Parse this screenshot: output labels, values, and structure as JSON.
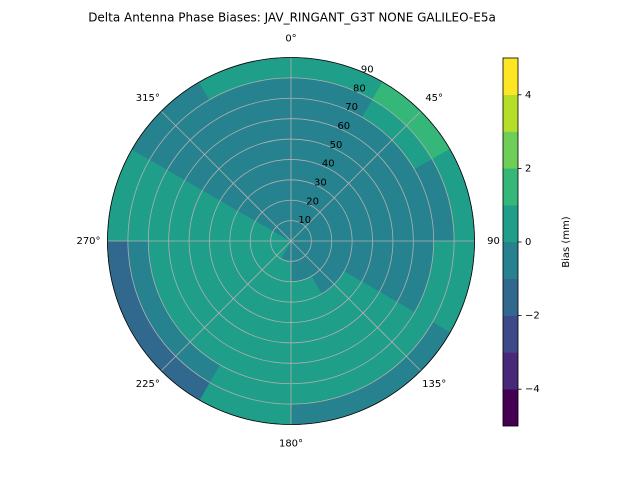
{
  "chart_data": {
    "type": "polar_contour",
    "title": "Delta Antenna Phase Biases: JAV_RINGANT_G3T NONE GALILEO-E5a",
    "theta_edges": [
      0,
      30,
      60,
      90,
      120,
      150,
      180,
      210,
      240,
      270,
      300,
      330,
      360
    ],
    "r_edges": [
      0,
      10,
      20,
      30,
      40,
      50,
      60,
      70,
      80,
      90
    ],
    "z": [
      [
        -0.5,
        -0.5,
        -0.5,
        -0.5,
        -0.5,
        -0.5,
        -0.5,
        -0.5,
        0.5
      ],
      [
        -0.5,
        -0.5,
        -0.5,
        -0.5,
        -0.5,
        -0.5,
        -0.5,
        0.5,
        1.5
      ],
      [
        -0.5,
        -0.5,
        -0.5,
        -0.5,
        -0.5,
        -0.5,
        -0.5,
        -0.5,
        0.5
      ],
      [
        -0.5,
        -0.5,
        -0.5,
        -0.5,
        -0.5,
        -0.5,
        -0.5,
        0.5,
        0.5
      ],
      [
        -0.5,
        -0.5,
        -0.5,
        0.5,
        0.5,
        0.5,
        0.5,
        0.5,
        -0.5
      ],
      [
        -0.5,
        -0.5,
        0.5,
        0.5,
        0.5,
        0.5,
        0.5,
        0.5,
        -0.5
      ],
      [
        -0.5,
        0.5,
        0.5,
        0.5,
        0.5,
        0.5,
        0.5,
        0.5,
        0.5
      ],
      [
        0.5,
        0.5,
        0.5,
        0.5,
        0.5,
        0.5,
        0.5,
        -0.5,
        -1.5
      ],
      [
        0.5,
        0.5,
        0.5,
        0.5,
        0.5,
        0.5,
        0.5,
        -0.5,
        -1.5
      ],
      [
        0.5,
        0.5,
        0.5,
        0.5,
        0.5,
        0.5,
        0.5,
        0.5,
        0.5
      ],
      [
        -0.5,
        -0.5,
        -0.5,
        -0.5,
        -0.5,
        -0.5,
        -0.5,
        -0.5,
        -0.5
      ],
      [
        -0.5,
        -0.5,
        -0.5,
        -0.5,
        -0.5,
        -0.5,
        -0.5,
        -0.5,
        0.5
      ]
    ],
    "rlim": [
      0,
      90
    ],
    "rticks": [
      10,
      20,
      30,
      40,
      50,
      60,
      70,
      80,
      90
    ],
    "thetaticks": [
      {
        "value": 0,
        "label": "0°"
      },
      {
        "value": 45,
        "label": "45°"
      },
      {
        "value": 90,
        "label": "90"
      },
      {
        "value": 135,
        "label": "135°"
      },
      {
        "value": 180,
        "label": "180°"
      },
      {
        "value": 225,
        "label": "225°"
      },
      {
        "value": 270,
        "label": "270°"
      },
      {
        "value": 315,
        "label": "315°"
      }
    ],
    "grid": true,
    "colorbar": {
      "label": "Bias (mm)",
      "levels": [
        -5,
        -4,
        -3,
        -2,
        -1,
        0,
        1,
        2,
        3,
        4,
        5
      ],
      "colors": [
        "#440154",
        "#482878",
        "#3e4989",
        "#31688e",
        "#26828e",
        "#1f9e89",
        "#35b779",
        "#6ece58",
        "#b5de2b",
        "#fde725"
      ],
      "ticks": [
        {
          "value": -4,
          "label": "−4"
        },
        {
          "value": -2,
          "label": "−2"
        },
        0,
        2,
        4
      ]
    }
  }
}
